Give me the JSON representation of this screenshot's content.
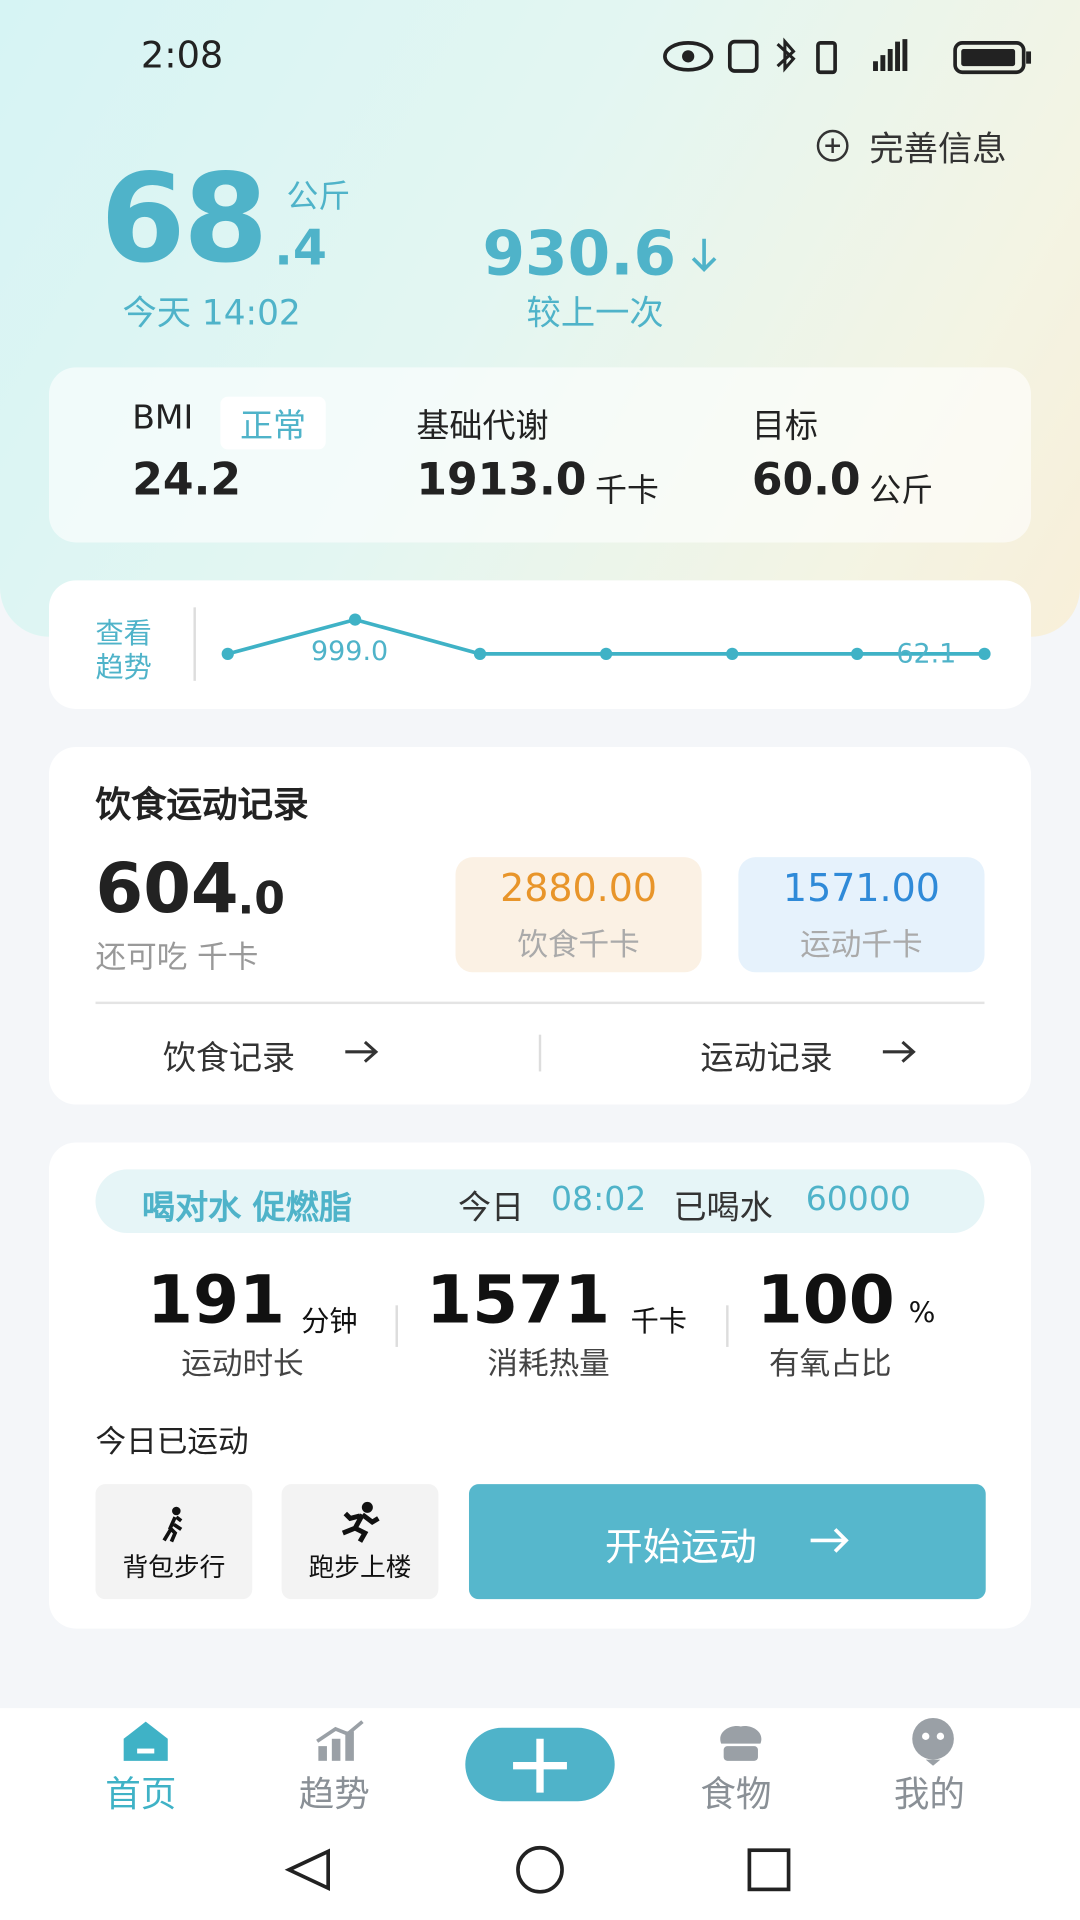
{
  "status_bar": {
    "time": "2:08"
  },
  "header": {
    "action": "完善信息"
  },
  "weight": {
    "integer": "68",
    "decimal": ".4",
    "unit": "公斤",
    "time": "今天 14:02"
  },
  "change": {
    "value": "930.6",
    "label": "较上一次"
  },
  "stats": [
    {
      "label": "BMI",
      "badge": "正常",
      "value": "24.2"
    },
    {
      "label": "基础代谢",
      "value": "1913.0",
      "unit": "千卡"
    },
    {
      "label": "目标",
      "value": "60.0",
      "unit": "公斤"
    }
  ],
  "trend": {
    "label": [
      "查看",
      "趋势"
    ],
    "point_labels": [
      "999.0",
      "62.1"
    ]
  },
  "diet": {
    "title": "饮食运动记录",
    "remaining_integer": "604",
    "remaining_decimal": ".0",
    "remaining_label": "还可吃 千卡",
    "intake": {
      "value": "2880.00",
      "label": "饮食千卡"
    },
    "exercise": {
      "value": "1571.00",
      "label": "运动千卡"
    },
    "links": [
      "饮食记录",
      "运动记录"
    ]
  },
  "water": {
    "slogan": "喝对水 促燃脂",
    "prefix": "今日",
    "time": "08:02",
    "mid": "已喝水",
    "amount": "60000"
  },
  "metrics": [
    {
      "value": "191",
      "unit": "分钟",
      "label": "运动时长"
    },
    {
      "value": "1571",
      "unit": "千卡",
      "label": "消耗热量"
    },
    {
      "value": "100",
      "unit": "%",
      "label": "有氧占比"
    }
  ],
  "activity": {
    "today_label": "今日已运动",
    "items": [
      "背包步行",
      "跑步上楼"
    ],
    "start_button": "开始运动"
  },
  "nav": [
    "首页",
    "趋势",
    "食物",
    "我的"
  ]
}
